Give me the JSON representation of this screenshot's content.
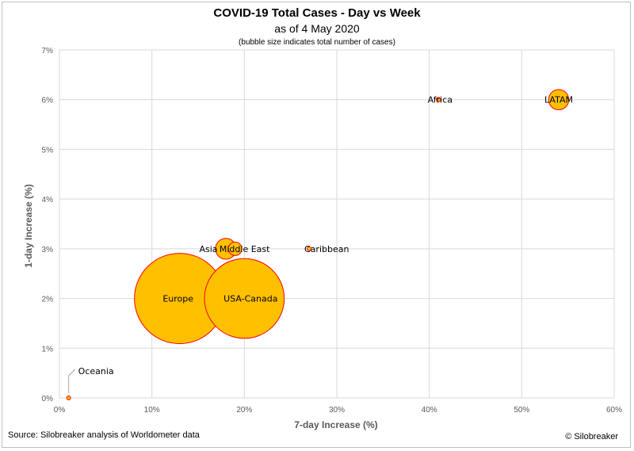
{
  "header": {
    "title": "COVID-19 Total Cases - Day vs Week",
    "subtitle": "as of 4 May 2020",
    "note": "(bubble size indicates total number of cases)"
  },
  "footer": {
    "source": "Source: Silobreaker analysis of Worldometer data",
    "copyright": "© Silobreaker"
  },
  "colors": {
    "bubble_fill": "#FFC000",
    "bubble_stroke": "#FF0000",
    "grid": "#d9d9d9"
  },
  "chart_data": {
    "type": "scatter",
    "subtype": "bubble",
    "title": "COVID-19 Total Cases - Day vs Week",
    "subtitle": "as of 4 May 2020",
    "xlabel": "7-day Increase (%)",
    "ylabel": "1-day Increase (%)",
    "xlim": [
      0,
      60
    ],
    "ylim": [
      0,
      7
    ],
    "x_ticks": [
      0,
      10,
      20,
      30,
      40,
      50,
      60
    ],
    "y_ticks": [
      0,
      1,
      2,
      3,
      4,
      5,
      6,
      7
    ],
    "x_tick_labels": [
      "0%",
      "10%",
      "20%",
      "30%",
      "40%",
      "50%",
      "60%"
    ],
    "y_tick_labels": [
      "0%",
      "1%",
      "2%",
      "3%",
      "4%",
      "5%",
      "6%",
      "7%"
    ],
    "grid": true,
    "size_note": "relative total cases",
    "points": [
      {
        "label": "Europe",
        "x": 13,
        "y": 2,
        "size": 1.0
      },
      {
        "label": "USA-Canada",
        "x": 20,
        "y": 2,
        "size": 0.78
      },
      {
        "label": "Asia",
        "x": 18,
        "y": 3,
        "size": 0.053
      },
      {
        "label": "Middle East",
        "x": 19,
        "y": 3,
        "size": 0.022
      },
      {
        "label": "Caribbean",
        "x": 27,
        "y": 3,
        "size": 0.00045
      },
      {
        "label": "Africa",
        "x": 41,
        "y": 6,
        "size": 0.0024
      },
      {
        "label": "LATAM",
        "x": 54,
        "y": 6,
        "size": 0.05
      },
      {
        "label": "Oceania",
        "x": 1,
        "y": 0,
        "size": 0.0003
      }
    ]
  }
}
